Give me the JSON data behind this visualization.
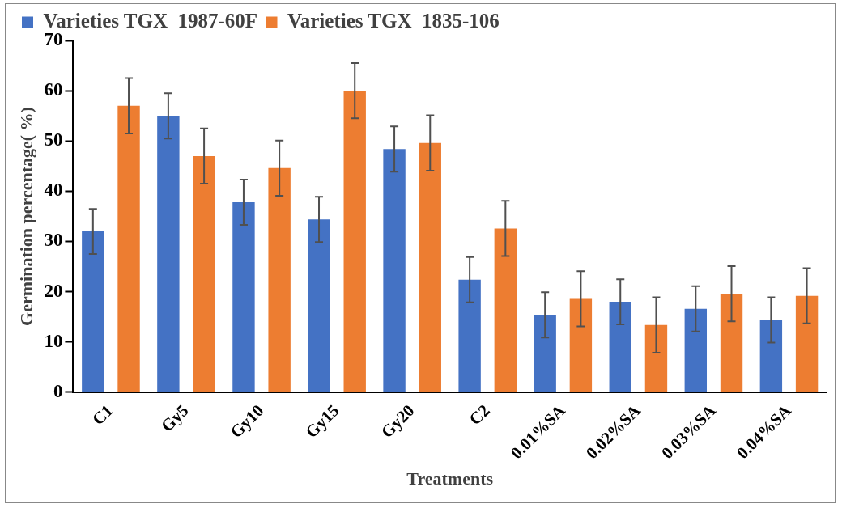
{
  "chart_data": {
    "type": "bar",
    "xlabel": "Treatments",
    "ylabel": "Germination percentage( %)",
    "categories": [
      "C1",
      "Gy5",
      "Gy10",
      "Gy15",
      "Gy20",
      "C2",
      "0.01%SA",
      "0.02%SA",
      "0.03%SA",
      "0.04%SA"
    ],
    "series": [
      {
        "name": "Varieties TGX  1987-60F",
        "color": "#4472c4",
        "values": [
          32,
          55,
          37.8,
          34.4,
          48.4,
          22.4,
          15.4,
          18,
          16.6,
          14.4
        ],
        "errors": [
          4.5,
          4.5,
          4.5,
          4.5,
          4.5,
          4.5,
          4.5,
          4.5,
          4.5,
          4.5
        ]
      },
      {
        "name": "Varieties TGX  1835-106",
        "color": "#ed7d31",
        "values": [
          57,
          47,
          44.6,
          60,
          49.6,
          32.6,
          18.6,
          13.4,
          19.6,
          19.2
        ],
        "errors": [
          5.5,
          5.5,
          5.5,
          5.5,
          5.5,
          5.5,
          5.5,
          5.5,
          5.5,
          5.5
        ]
      }
    ],
    "ylim": [
      0,
      70
    ],
    "yticks": [
      0,
      10,
      20,
      30,
      40,
      50,
      60,
      70
    ],
    "grid": false,
    "legend": "top"
  }
}
